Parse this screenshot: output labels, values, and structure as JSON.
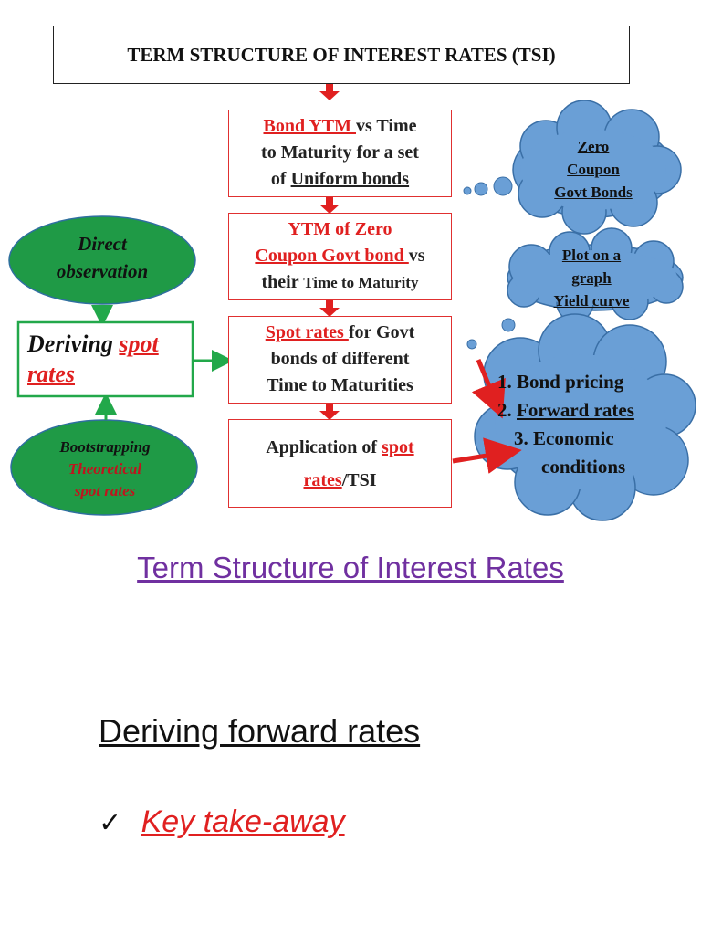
{
  "diagram": {
    "title": "TERM STRUCTURE OF INTEREST RATES (TSI)",
    "box1": {
      "highlight": "Bond YTM ",
      "line1_rest": "vs Time",
      "line2": "to Maturity for a set",
      "line3_pre": "of ",
      "line3_u": "Uniform bonds"
    },
    "box2": {
      "line1": "YTM of Zero",
      "line2_red": "Coupon Govt bond ",
      "line2_rest": "vs",
      "line3_a": "their ",
      "line3_b": "Time to Maturity"
    },
    "box3": {
      "highlight": " Spot rates ",
      "line1_rest": "for Govt",
      "line2": "bonds of different",
      "line3": "Time to Maturities"
    },
    "box4": {
      "line1_pre": "Application of ",
      "line1_red": "spot",
      "line2_red": "rates",
      "line2_rest": "/TSI"
    },
    "cloud_zero": {
      "line1": "Zero",
      "line2": "Coupon",
      "line3": "Govt Bonds"
    },
    "cloud_plot": {
      "line1": "Plot on a",
      "line2": "graph",
      "line3": "Yield curve"
    },
    "cloud_apps": [
      {
        "num": "1.",
        "text": "Bond pricing"
      },
      {
        "num": "2.",
        "text": "Forward rates"
      },
      {
        "num": "3.",
        "text": "Economic"
      },
      {
        "num": "",
        "text": "conditions"
      }
    ],
    "oval_direct": {
      "line1": "Direct",
      "line2": "observation"
    },
    "deriving_box": {
      "word": "Deriving ",
      "red1": "spot",
      "red2": "rates"
    },
    "oval_boot": {
      "line1": "Bootstrapping",
      "line2": "Theoretical",
      "line3": "spot rates"
    }
  },
  "slide_title": "Term Structure of Interest Rates",
  "subheading": "Deriving forward rates",
  "takeaway": {
    "check": "✓",
    "text": "Key take-away"
  },
  "colors": {
    "red": "#e02020",
    "green_fill": "#1f9a46",
    "green_border": "#22a84a",
    "cloud_fill": "#6a9fd6",
    "cloud_border": "#3a6fa6",
    "purple": "#7030a0"
  }
}
